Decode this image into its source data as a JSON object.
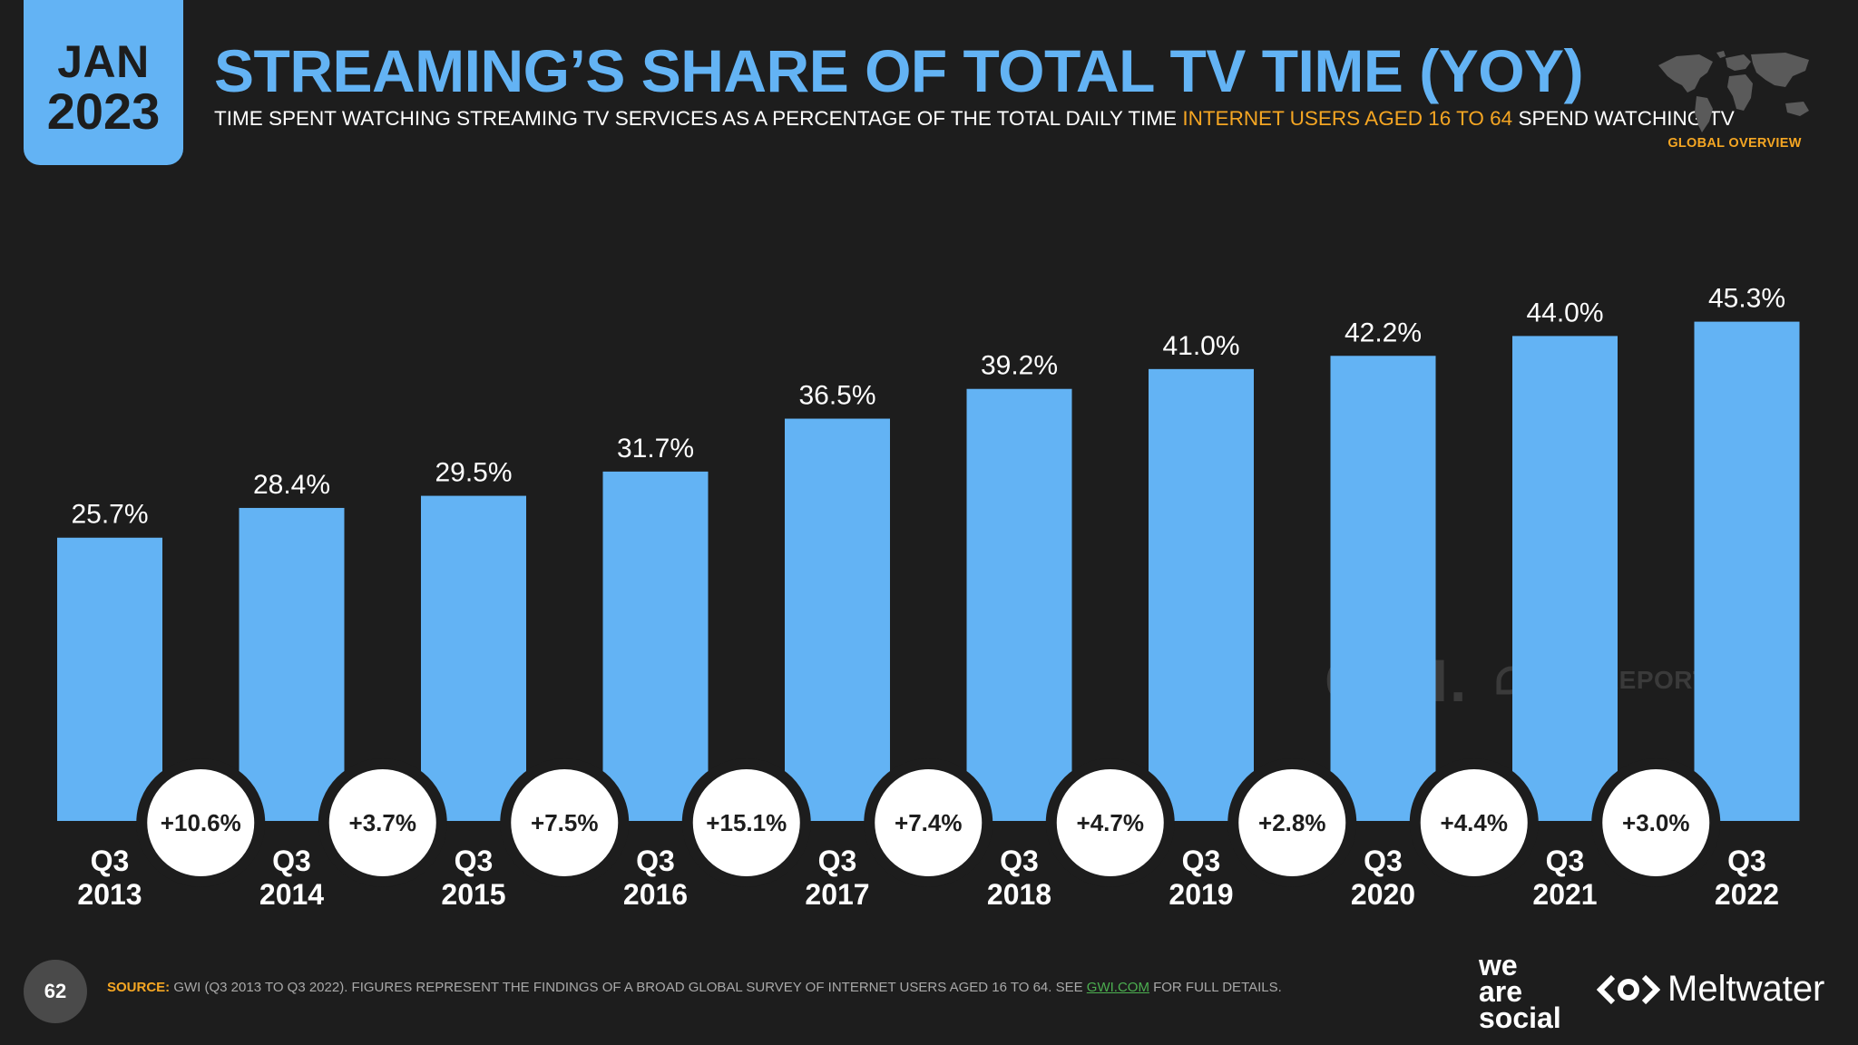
{
  "header": {
    "date_month": "JAN",
    "date_year": "2023",
    "title": "STREAMING’S SHARE OF TOTAL TV TIME (YOY)",
    "subtitle_pre": "TIME SPENT WATCHING STREAMING TV SERVICES AS A PERCENTAGE OF THE TOTAL DAILY TIME ",
    "subtitle_highlight": "INTERNET USERS AGED 16 TO 64",
    "subtitle_post": " SPEND WATCHING TV",
    "global_label": "GLOBAL OVERVIEW"
  },
  "colors": {
    "background": "#1d1d1d",
    "accent": "#63b3f4",
    "highlight": "#f5a623",
    "link": "#4caf50"
  },
  "chart_data": {
    "type": "bar",
    "categories": [
      [
        "Q3",
        "2013"
      ],
      [
        "Q3",
        "2014"
      ],
      [
        "Q3",
        "2015"
      ],
      [
        "Q3",
        "2016"
      ],
      [
        "Q3",
        "2017"
      ],
      [
        "Q3",
        "2018"
      ],
      [
        "Q3",
        "2019"
      ],
      [
        "Q3",
        "2020"
      ],
      [
        "Q3",
        "2021"
      ],
      [
        "Q3",
        "2022"
      ]
    ],
    "values": [
      25.7,
      28.4,
      29.5,
      31.7,
      36.5,
      39.2,
      41.0,
      42.2,
      44.0,
      45.3
    ],
    "value_labels": [
      "25.7%",
      "28.4%",
      "29.5%",
      "31.7%",
      "36.5%",
      "39.2%",
      "41.0%",
      "42.2%",
      "44.0%",
      "45.3%"
    ],
    "yoy_changes": [
      "+10.6%",
      "+3.7%",
      "+7.5%",
      "+15.1%",
      "+7.4%",
      "+4.7%",
      "+2.8%",
      "+4.4%",
      "+3.0%"
    ],
    "ylim": [
      0,
      50
    ],
    "grid": false,
    "legend": "none"
  },
  "watermark": {
    "gwi": "GWI.",
    "datareportal": "DATAREPORTAL"
  },
  "footer": {
    "page_number": "62",
    "source_label": "SOURCE:",
    "source_text": " GWI (Q3 2013 TO Q3 2022). FIGURES REPRESENT THE FINDINGS OF A BROAD GLOBAL SURVEY OF INTERNET USERS AGED 16 TO 64. SEE ",
    "source_link": "GWI.COM",
    "source_tail": " FOR FULL DETAILS.",
    "logo_was_1": "we",
    "logo_was_2": "are",
    "logo_was_3": "social",
    "logo_meltwater": "Meltwater"
  },
  "icons": {
    "world_map": "world-map-icon",
    "meltwater": "meltwater-logo-icon",
    "datareportal": "datareportal-icon"
  }
}
